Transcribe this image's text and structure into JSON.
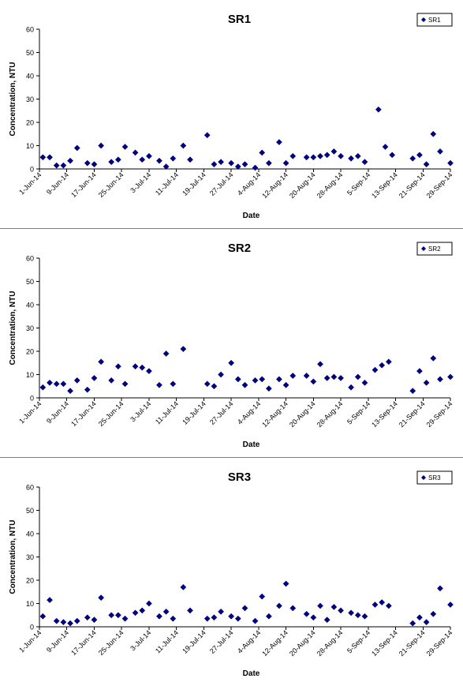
{
  "chart_data": [
    {
      "type": "scatter",
      "title": "SR1",
      "xlabel": "Date",
      "ylabel": "Concentration, NTU",
      "ylim": [
        0,
        60
      ],
      "yticks": [
        0,
        10,
        20,
        30,
        40,
        50,
        60
      ],
      "xlim": [
        "2014-06-01",
        "2014-09-29"
      ],
      "xtick_labels": [
        "1-Jun-14",
        "9-Jun-14",
        "17-Jun-14",
        "25-Jun-14",
        "3-Jul-14",
        "11-Jul-14",
        "19-Jul-14",
        "27-Jul-14",
        "4-Aug-14",
        "12-Aug-14",
        "20-Aug-14",
        "28-Aug-14",
        "5-Sep-14",
        "13-Sep-14",
        "21-Sep-14",
        "29-Sep-14"
      ],
      "grid": false,
      "legend_position": "top-right",
      "marker_color": "#000080",
      "series": [
        {
          "name": "SR1",
          "points": [
            [
              "2014-06-02",
              5.0
            ],
            [
              "2014-06-04",
              5.0
            ],
            [
              "2014-06-06",
              1.5
            ],
            [
              "2014-06-08",
              1.5
            ],
            [
              "2014-06-10",
              3.5
            ],
            [
              "2014-06-12",
              9.0
            ],
            [
              "2014-06-15",
              2.5
            ],
            [
              "2014-06-17",
              2.0
            ],
            [
              "2014-06-19",
              10.0
            ],
            [
              "2014-06-22",
              3.0
            ],
            [
              "2014-06-24",
              4.0
            ],
            [
              "2014-06-26",
              9.5
            ],
            [
              "2014-06-29",
              7.0
            ],
            [
              "2014-07-01",
              4.0
            ],
            [
              "2014-07-03",
              5.5
            ],
            [
              "2014-07-06",
              3.5
            ],
            [
              "2014-07-08",
              1.0
            ],
            [
              "2014-07-10",
              4.5
            ],
            [
              "2014-07-13",
              10.0
            ],
            [
              "2014-07-15",
              4.0
            ],
            [
              "2014-07-20",
              14.5
            ],
            [
              "2014-07-22",
              2.0
            ],
            [
              "2014-07-24",
              3.0
            ],
            [
              "2014-07-27",
              2.5
            ],
            [
              "2014-07-29",
              1.0
            ],
            [
              "2014-07-31",
              2.0
            ],
            [
              "2014-08-03",
              0.5
            ],
            [
              "2014-08-05",
              7.0
            ],
            [
              "2014-08-07",
              2.5
            ],
            [
              "2014-08-10",
              11.5
            ],
            [
              "2014-08-12",
              2.5
            ],
            [
              "2014-08-14",
              5.5
            ],
            [
              "2014-08-18",
              5.0
            ],
            [
              "2014-08-20",
              5.0
            ],
            [
              "2014-08-22",
              5.5
            ],
            [
              "2014-08-24",
              6.0
            ],
            [
              "2014-08-26",
              7.5
            ],
            [
              "2014-08-28",
              5.5
            ],
            [
              "2014-08-31",
              4.5
            ],
            [
              "2014-09-02",
              5.5
            ],
            [
              "2014-09-04",
              3.0
            ],
            [
              "2014-09-08",
              25.5
            ],
            [
              "2014-09-10",
              9.5
            ],
            [
              "2014-09-12",
              6.0
            ],
            [
              "2014-09-18",
              4.5
            ],
            [
              "2014-09-20",
              6.0
            ],
            [
              "2014-09-22",
              2.0
            ],
            [
              "2014-09-24",
              15.0
            ],
            [
              "2014-09-26",
              7.5
            ],
            [
              "2014-09-29",
              2.5
            ]
          ]
        }
      ]
    },
    {
      "type": "scatter",
      "title": "SR2",
      "xlabel": "Date",
      "ylabel": "Concentration, NTU",
      "ylim": [
        0,
        60
      ],
      "yticks": [
        0,
        10,
        20,
        30,
        40,
        50,
        60
      ],
      "xlim": [
        "2014-06-01",
        "2014-09-29"
      ],
      "xtick_labels": [
        "1-Jun-14",
        "9-Jun-14",
        "17-Jun-14",
        "25-Jun-14",
        "3-Jul-14",
        "11-Jul-14",
        "19-Jul-14",
        "27-Jul-14",
        "4-Aug-14",
        "12-Aug-14",
        "20-Aug-14",
        "28-Aug-14",
        "5-Sep-14",
        "13-Sep-14",
        "21-Sep-14",
        "29-Sep-14"
      ],
      "grid": false,
      "legend_position": "top-right",
      "marker_color": "#000080",
      "series": [
        {
          "name": "SR2",
          "points": [
            [
              "2014-06-02",
              4.5
            ],
            [
              "2014-06-04",
              6.5
            ],
            [
              "2014-06-06",
              6.0
            ],
            [
              "2014-06-08",
              6.0
            ],
            [
              "2014-06-10",
              3.0
            ],
            [
              "2014-06-12",
              7.5
            ],
            [
              "2014-06-15",
              3.5
            ],
            [
              "2014-06-17",
              8.5
            ],
            [
              "2014-06-19",
              15.5
            ],
            [
              "2014-06-22",
              7.5
            ],
            [
              "2014-06-24",
              13.5
            ],
            [
              "2014-06-26",
              6.0
            ],
            [
              "2014-06-29",
              13.5
            ],
            [
              "2014-07-01",
              13.0
            ],
            [
              "2014-07-03",
              11.5
            ],
            [
              "2014-07-06",
              5.5
            ],
            [
              "2014-07-08",
              19.0
            ],
            [
              "2014-07-10",
              6.0
            ],
            [
              "2014-07-13",
              21.0
            ],
            [
              "2014-07-20",
              6.0
            ],
            [
              "2014-07-22",
              5.0
            ],
            [
              "2014-07-24",
              10.0
            ],
            [
              "2014-07-27",
              15.0
            ],
            [
              "2014-07-29",
              8.0
            ],
            [
              "2014-07-31",
              5.5
            ],
            [
              "2014-08-03",
              7.5
            ],
            [
              "2014-08-05",
              8.0
            ],
            [
              "2014-08-07",
              4.0
            ],
            [
              "2014-08-10",
              8.0
            ],
            [
              "2014-08-12",
              5.5
            ],
            [
              "2014-08-14",
              9.5
            ],
            [
              "2014-08-18",
              9.5
            ],
            [
              "2014-08-20",
              7.0
            ],
            [
              "2014-08-22",
              14.5
            ],
            [
              "2014-08-24",
              8.5
            ],
            [
              "2014-08-26",
              9.0
            ],
            [
              "2014-08-28",
              8.5
            ],
            [
              "2014-08-31",
              4.5
            ],
            [
              "2014-09-02",
              9.0
            ],
            [
              "2014-09-04",
              6.5
            ],
            [
              "2014-09-07",
              12.0
            ],
            [
              "2014-09-09",
              14.0
            ],
            [
              "2014-09-11",
              15.5
            ],
            [
              "2014-09-18",
              3.0
            ],
            [
              "2014-09-20",
              11.5
            ],
            [
              "2014-09-22",
              6.5
            ],
            [
              "2014-09-24",
              17.0
            ],
            [
              "2014-09-26",
              8.0
            ],
            [
              "2014-09-29",
              9.0
            ]
          ]
        }
      ]
    },
    {
      "type": "scatter",
      "title": "SR3",
      "xlabel": "Date",
      "ylabel": "Concentration, NTU",
      "ylim": [
        0,
        60
      ],
      "yticks": [
        0,
        10,
        20,
        30,
        40,
        50,
        60
      ],
      "xlim": [
        "2014-06-01",
        "2014-09-29"
      ],
      "xtick_labels": [
        "1-Jun-14",
        "9-Jun-14",
        "17-Jun-14",
        "25-Jun-14",
        "3-Jul-14",
        "11-Jul-14",
        "19-Jul-14",
        "27-Jul-14",
        "4-Aug-14",
        "12-Aug-14",
        "20-Aug-14",
        "28-Aug-14",
        "5-Sep-14",
        "13-Sep-14",
        "21-Sep-14",
        "29-Sep-14"
      ],
      "grid": false,
      "legend_position": "top-right",
      "marker_color": "#000080",
      "series": [
        {
          "name": "SR3",
          "points": [
            [
              "2014-06-02",
              4.5
            ],
            [
              "2014-06-04",
              11.5
            ],
            [
              "2014-06-06",
              2.5
            ],
            [
              "2014-06-08",
              2.0
            ],
            [
              "2014-06-10",
              1.5
            ],
            [
              "2014-06-12",
              2.5
            ],
            [
              "2014-06-15",
              4.0
            ],
            [
              "2014-06-17",
              3.0
            ],
            [
              "2014-06-19",
              12.5
            ],
            [
              "2014-06-22",
              5.0
            ],
            [
              "2014-06-24",
              5.0
            ],
            [
              "2014-06-26",
              3.5
            ],
            [
              "2014-06-29",
              6.0
            ],
            [
              "2014-07-01",
              7.0
            ],
            [
              "2014-07-03",
              10.0
            ],
            [
              "2014-07-06",
              4.5
            ],
            [
              "2014-07-08",
              6.5
            ],
            [
              "2014-07-10",
              3.5
            ],
            [
              "2014-07-13",
              17.0
            ],
            [
              "2014-07-15",
              7.0
            ],
            [
              "2014-07-20",
              3.5
            ],
            [
              "2014-07-22",
              4.0
            ],
            [
              "2014-07-24",
              6.5
            ],
            [
              "2014-07-27",
              4.5
            ],
            [
              "2014-07-29",
              3.5
            ],
            [
              "2014-07-31",
              8.0
            ],
            [
              "2014-08-03",
              2.5
            ],
            [
              "2014-08-05",
              13.0
            ],
            [
              "2014-08-07",
              4.5
            ],
            [
              "2014-08-10",
              9.0
            ],
            [
              "2014-08-12",
              18.5
            ],
            [
              "2014-08-14",
              8.0
            ],
            [
              "2014-08-18",
              5.5
            ],
            [
              "2014-08-20",
              4.0
            ],
            [
              "2014-08-22",
              9.0
            ],
            [
              "2014-08-24",
              3.0
            ],
            [
              "2014-08-26",
              8.5
            ],
            [
              "2014-08-28",
              7.0
            ],
            [
              "2014-08-31",
              6.0
            ],
            [
              "2014-09-02",
              5.0
            ],
            [
              "2014-09-04",
              4.5
            ],
            [
              "2014-09-07",
              9.5
            ],
            [
              "2014-09-09",
              10.5
            ],
            [
              "2014-09-11",
              9.0
            ],
            [
              "2014-09-18",
              1.5
            ],
            [
              "2014-09-20",
              4.0
            ],
            [
              "2014-09-22",
              2.0
            ],
            [
              "2014-09-24",
              5.5
            ],
            [
              "2014-09-26",
              16.5
            ],
            [
              "2014-09-29",
              9.5
            ]
          ]
        }
      ]
    }
  ]
}
